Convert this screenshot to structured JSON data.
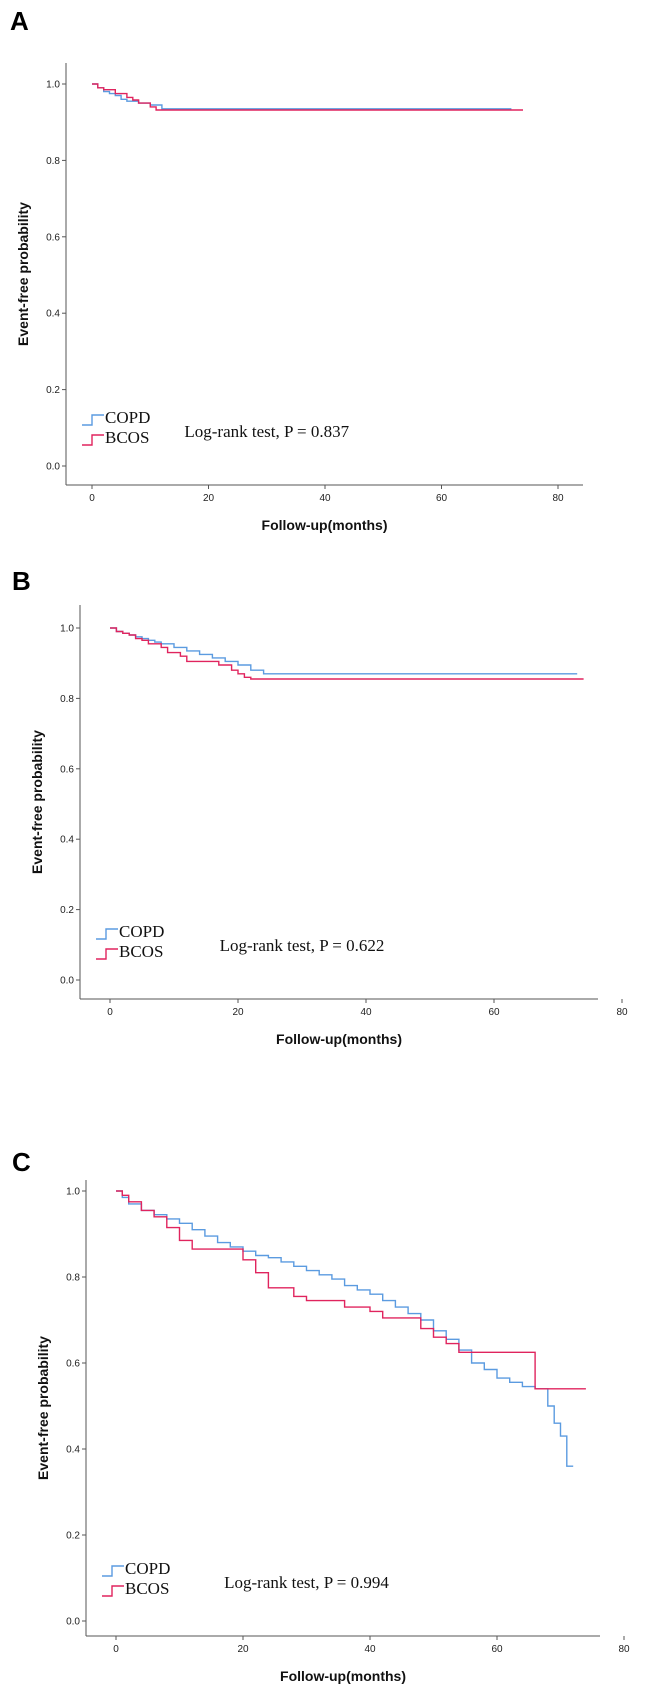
{
  "colors": {
    "COPD": "#5b9be0",
    "BCOS": "#e0245e"
  },
  "chart_data": [
    {
      "panel": "A",
      "type": "line",
      "step": true,
      "xlabel": "Follow-up(months)",
      "ylabel": "Event-free probability",
      "xlim": [
        0,
        80
      ],
      "ylim": [
        0,
        1
      ],
      "xticks": [
        "0",
        "20",
        "40",
        "60",
        "80"
      ],
      "yticks": [
        "0.0",
        "0.2",
        "0.4",
        "0.6",
        "0.8",
        "1.0"
      ],
      "annotation": "Log-rank test, P = 0.837",
      "legend": [
        "COPD",
        "BCOS"
      ],
      "legend_position": "bottom-left",
      "series": [
        {
          "name": "COPD",
          "x": [
            0,
            1,
            2,
            3,
            4,
            5,
            6,
            8,
            10,
            12,
            72
          ],
          "y": [
            1.0,
            0.99,
            0.98,
            0.975,
            0.97,
            0.96,
            0.955,
            0.95,
            0.945,
            0.935,
            0.935
          ]
        },
        {
          "name": "BCOS",
          "x": [
            0,
            1,
            2,
            4,
            6,
            7,
            8,
            10,
            11,
            74
          ],
          "y": [
            1.0,
            0.99,
            0.985,
            0.975,
            0.965,
            0.958,
            0.95,
            0.94,
            0.932,
            0.932
          ]
        }
      ]
    },
    {
      "panel": "B",
      "type": "line",
      "step": true,
      "xlabel": "Follow-up(months)",
      "ylabel": "Event-free probability",
      "xlim": [
        0,
        80
      ],
      "ylim": [
        0,
        1
      ],
      "xticks": [
        "0",
        "20",
        "40",
        "60",
        "80"
      ],
      "yticks": [
        "0.0",
        "0.2",
        "0.4",
        "0.6",
        "0.8",
        "1.0"
      ],
      "annotation": "Log-rank test, P = 0.622",
      "legend": [
        "COPD",
        "BCOS"
      ],
      "legend_position": "bottom-left",
      "series": [
        {
          "name": "COPD",
          "x": [
            0,
            1,
            2,
            3,
            4,
            5,
            6,
            7,
            8,
            10,
            12,
            14,
            16,
            18,
            20,
            22,
            24,
            73
          ],
          "y": [
            1.0,
            0.99,
            0.985,
            0.98,
            0.975,
            0.97,
            0.965,
            0.96,
            0.955,
            0.945,
            0.935,
            0.925,
            0.915,
            0.905,
            0.895,
            0.88,
            0.87,
            0.87
          ]
        },
        {
          "name": "BCOS",
          "x": [
            0,
            1,
            2,
            3,
            4,
            5,
            6,
            8,
            9,
            11,
            12,
            16,
            17,
            19,
            20,
            21,
            22,
            24,
            74
          ],
          "y": [
            1.0,
            0.99,
            0.985,
            0.98,
            0.97,
            0.965,
            0.955,
            0.945,
            0.93,
            0.92,
            0.905,
            0.905,
            0.895,
            0.88,
            0.87,
            0.86,
            0.855,
            0.855,
            0.855
          ]
        }
      ]
    },
    {
      "panel": "C",
      "type": "line",
      "step": true,
      "xlabel": "Follow-up(months)",
      "ylabel": "Event-free probability",
      "xlim": [
        0,
        80
      ],
      "ylim": [
        0,
        1
      ],
      "xticks": [
        "0",
        "20",
        "40",
        "60",
        "80"
      ],
      "yticks": [
        "0.0",
        "0.2",
        "0.4",
        "0.6",
        "0.8",
        "1.0"
      ],
      "annotation": "Log-rank test, P = 0.994",
      "legend": [
        "COPD",
        "BCOS"
      ],
      "legend_position": "bottom-left",
      "series": [
        {
          "name": "COPD",
          "x": [
            0,
            1,
            2,
            4,
            6,
            8,
            10,
            12,
            14,
            16,
            18,
            20,
            22,
            24,
            26,
            28,
            30,
            32,
            34,
            36,
            38,
            40,
            42,
            44,
            46,
            48,
            50,
            52,
            54,
            56,
            58,
            60,
            62,
            64,
            66,
            68,
            69,
            70,
            71,
            72
          ],
          "y": [
            1.0,
            0.985,
            0.97,
            0.955,
            0.945,
            0.935,
            0.925,
            0.91,
            0.895,
            0.88,
            0.87,
            0.86,
            0.85,
            0.845,
            0.835,
            0.825,
            0.815,
            0.805,
            0.795,
            0.78,
            0.77,
            0.76,
            0.745,
            0.73,
            0.715,
            0.7,
            0.675,
            0.655,
            0.63,
            0.6,
            0.585,
            0.565,
            0.555,
            0.545,
            0.54,
            0.5,
            0.46,
            0.43,
            0.36,
            0.36
          ]
        },
        {
          "name": "BCOS",
          "x": [
            0,
            1,
            2,
            4,
            6,
            8,
            10,
            12,
            18,
            20,
            22,
            24,
            28,
            30,
            36,
            40,
            42,
            46,
            48,
            50,
            52,
            54,
            66,
            74
          ],
          "y": [
            1.0,
            0.99,
            0.975,
            0.955,
            0.94,
            0.915,
            0.885,
            0.865,
            0.865,
            0.84,
            0.81,
            0.775,
            0.755,
            0.745,
            0.73,
            0.72,
            0.705,
            0.705,
            0.68,
            0.66,
            0.645,
            0.625,
            0.54,
            0.54
          ]
        }
      ]
    }
  ]
}
